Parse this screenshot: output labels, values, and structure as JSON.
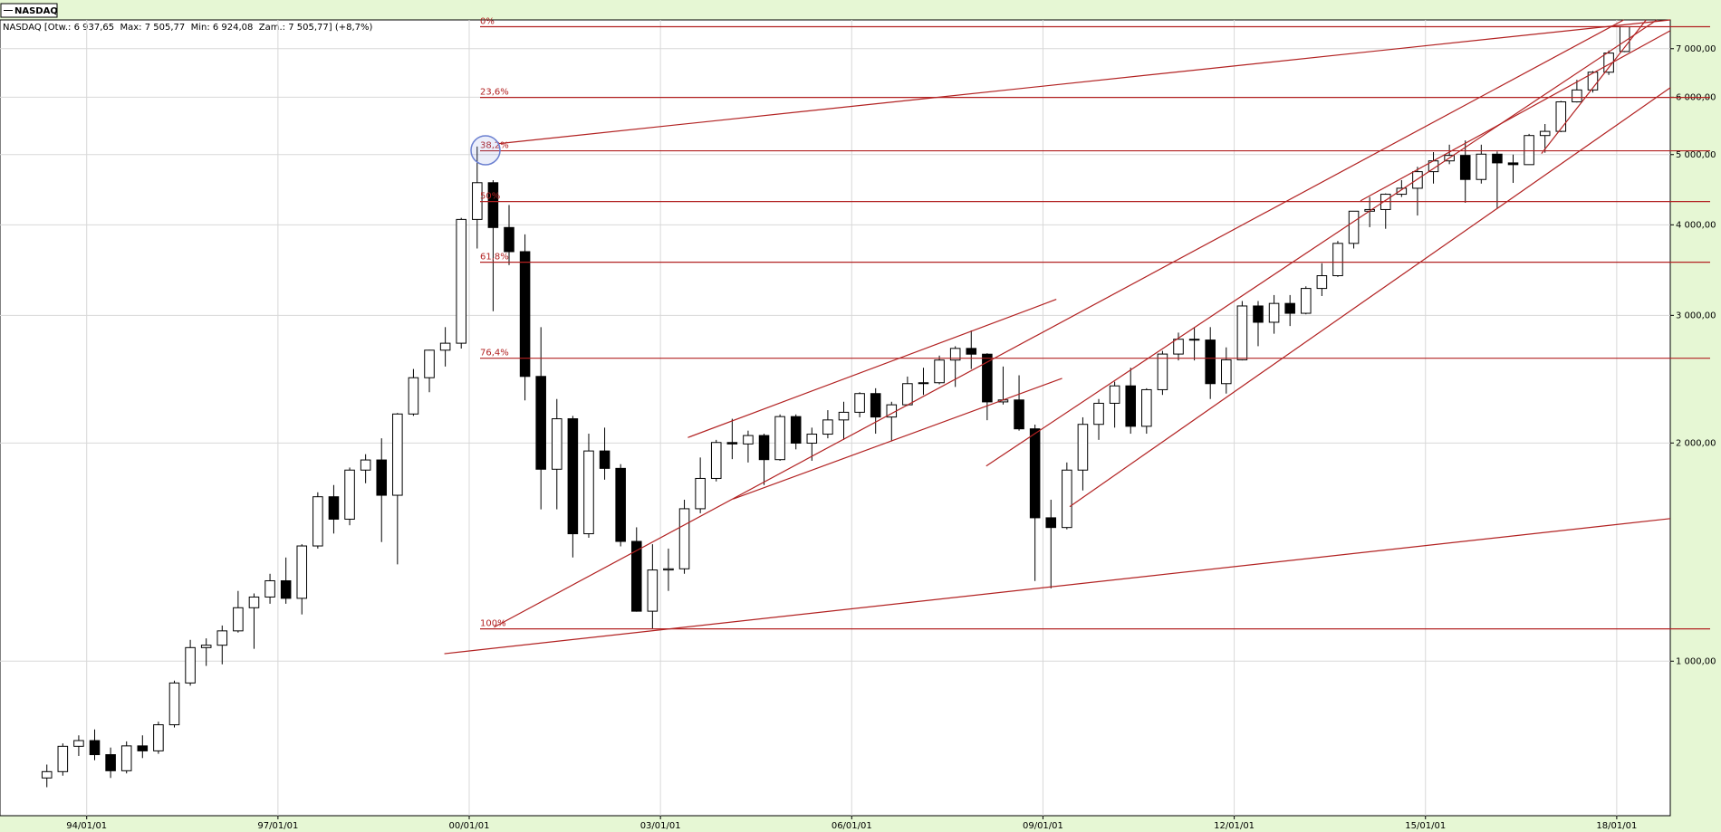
{
  "chart_data": {
    "type": "candlestick",
    "legend": "NASDAQ",
    "header": "NASDAQ [Otw.: 6 937,65  Max: 7 505,77  Min: 6 924,08  Zam.: 7 505,77] (+8,7%)",
    "log_y": true,
    "grid": true,
    "up_color": "#ffffff",
    "down_color": "#000000",
    "line_color": "#b22222",
    "xlim": [
      1992.64,
      2018.84
    ],
    "xticks": [
      {
        "value": 1994,
        "label": "94/01/01"
      },
      {
        "value": 1997,
        "label": "97/01/01"
      },
      {
        "value": 2000,
        "label": "00/01/01"
      },
      {
        "value": 2003,
        "label": "03/01/01"
      },
      {
        "value": 2006,
        "label": "06/01/01"
      },
      {
        "value": 2009,
        "label": "09/01/01"
      },
      {
        "value": 2012,
        "label": "12/01/01"
      },
      {
        "value": 2015,
        "label": "15/01/01"
      },
      {
        "value": 2018,
        "label": "18/01/01"
      }
    ],
    "ylim": [
      612,
      7670
    ],
    "yticks": [
      {
        "value": 1000,
        "label": "1 000,00"
      },
      {
        "value": 2000,
        "label": "2 000,00"
      },
      {
        "value": 3000,
        "label": "3 000,00"
      },
      {
        "value": 4000,
        "label": "4 000,00"
      },
      {
        "value": 5000,
        "label": "5 000,00"
      },
      {
        "value": 6000,
        "label": "6 000,00"
      },
      {
        "value": 7000,
        "label": "7 000,00"
      }
    ],
    "fib_levels": {
      "labels": [
        "0%",
        "23,6%",
        "38,2%",
        "50%",
        "61,8%",
        "76,4%",
        "100%"
      ],
      "values": [
        7505.77,
        5995,
        5061,
        4307,
        3552,
        2618,
        1108
      ]
    },
    "trendlines": [
      {
        "x": [
          2000.45,
          2018.84
        ],
        "y": [
          5176,
          7670
        ]
      },
      {
        "x": [
          1999.61,
          2018.84
        ],
        "y": [
          1024,
          1573
        ]
      },
      {
        "x": [
          2000.39,
          2018.11
        ],
        "y": [
          1114,
          7670
        ]
      },
      {
        "x": [
          2003.43,
          2009.21
        ],
        "y": [
          2035,
          3157
        ]
      },
      {
        "x": [
          2004.14,
          2009.3
        ],
        "y": [
          1674,
          2456
        ]
      },
      {
        "x": [
          2008.11,
          2018.63
        ],
        "y": [
          1859,
          7670
        ]
      },
      {
        "x": [
          2009.42,
          2018.84
        ],
        "y": [
          1634,
          6183
        ]
      },
      {
        "x": [
          2016.82,
          2018.46
        ],
        "y": [
          5017,
          7670
        ]
      },
      {
        "x": [
          2013.98,
          2018.84
        ],
        "y": [
          4316,
          7413
        ]
      }
    ],
    "x": [
      1993.375,
      1993.625,
      1993.875,
      1994.125,
      1994.375,
      1994.625,
      1994.875,
      1995.125,
      1995.375,
      1995.625,
      1995.875,
      1996.125,
      1996.375,
      1996.625,
      1996.875,
      1997.125,
      1997.375,
      1997.625,
      1997.875,
      1998.125,
      1998.375,
      1998.625,
      1998.875,
      1999.125,
      1999.375,
      1999.625,
      1999.875,
      2000.125,
      2000.375,
      2000.625,
      2000.875,
      2001.125,
      2001.375,
      2001.625,
      2001.875,
      2002.125,
      2002.375,
      2002.625,
      2002.875,
      2003.125,
      2003.375,
      2003.625,
      2003.875,
      2004.125,
      2004.375,
      2004.625,
      2004.875,
      2005.125,
      2005.375,
      2005.625,
      2005.875,
      2006.125,
      2006.375,
      2006.625,
      2006.875,
      2007.125,
      2007.375,
      2007.625,
      2007.875,
      2008.125,
      2008.375,
      2008.625,
      2008.875,
      2009.125,
      2009.375,
      2009.625,
      2009.875,
      2010.125,
      2010.375,
      2010.625,
      2010.875,
      2011.125,
      2011.375,
      2011.625,
      2011.875,
      2012.125,
      2012.375,
      2012.625,
      2012.875,
      2013.125,
      2013.375,
      2013.625,
      2013.875,
      2014.125,
      2014.375,
      2014.625,
      2014.875,
      2015.125,
      2015.375,
      2015.625,
      2015.875,
      2016.125,
      2016.375,
      2016.625,
      2016.875,
      2017.125,
      2017.375,
      2017.625,
      2017.875,
      2018.125
    ],
    "candles": [
      [
        690,
        720,
        670,
        704
      ],
      [
        704,
        770,
        695,
        763
      ],
      [
        763,
        790,
        740,
        777
      ],
      [
        777,
        805,
        730,
        743
      ],
      [
        743,
        760,
        690,
        706
      ],
      [
        706,
        775,
        700,
        764
      ],
      [
        764,
        790,
        735,
        752
      ],
      [
        752,
        825,
        745,
        817
      ],
      [
        817,
        940,
        810,
        933
      ],
      [
        933,
        1070,
        925,
        1044
      ],
      [
        1044,
        1075,
        985,
        1052
      ],
      [
        1052,
        1120,
        990,
        1101
      ],
      [
        1101,
        1250,
        1095,
        1185
      ],
      [
        1185,
        1240,
        1040,
        1226
      ],
      [
        1226,
        1320,
        1200,
        1291
      ],
      [
        1291,
        1390,
        1200,
        1221
      ],
      [
        1221,
        1450,
        1160,
        1442
      ],
      [
        1442,
        1710,
        1430,
        1686
      ],
      [
        1686,
        1750,
        1500,
        1570
      ],
      [
        1570,
        1850,
        1540,
        1835
      ],
      [
        1835,
        1930,
        1760,
        1895
      ],
      [
        1895,
        2030,
        1460,
        1694
      ],
      [
        1694,
        2200,
        1360,
        2193
      ],
      [
        2193,
        2530,
        2180,
        2461
      ],
      [
        2461,
        2690,
        2350,
        2686
      ],
      [
        2686,
        2890,
        2550,
        2746
      ],
      [
        2746,
        4090,
        2700,
        4069
      ],
      [
        4069,
        5130,
        3710,
        4573
      ],
      [
        4573,
        4610,
        3040,
        3966
      ],
      [
        3966,
        4260,
        3520,
        3673
      ],
      [
        3673,
        3880,
        2290,
        2471
      ],
      [
        2471,
        2890,
        1620,
        1840
      ],
      [
        1840,
        2300,
        1620,
        2160
      ],
      [
        2160,
        2180,
        1390,
        1499
      ],
      [
        1499,
        2060,
        1480,
        1950
      ],
      [
        1950,
        2100,
        1780,
        1845
      ],
      [
        1845,
        1870,
        1440,
        1463
      ],
      [
        1463,
        1530,
        1170,
        1172
      ],
      [
        1172,
        1450,
        1110,
        1336
      ],
      [
        1336,
        1430,
        1250,
        1341
      ],
      [
        1341,
        1670,
        1320,
        1623
      ],
      [
        1623,
        1910,
        1600,
        1787
      ],
      [
        1787,
        2020,
        1770,
        2003
      ],
      [
        2003,
        2160,
        1900,
        1994
      ],
      [
        1994,
        2080,
        1880,
        2048
      ],
      [
        2048,
        2060,
        1750,
        1897
      ],
      [
        1897,
        2190,
        1890,
        2175
      ],
      [
        2175,
        2190,
        1960,
        1999
      ],
      [
        1999,
        2100,
        1890,
        2057
      ],
      [
        2057,
        2220,
        2030,
        2152
      ],
      [
        2152,
        2280,
        2020,
        2205
      ],
      [
        2205,
        2350,
        2170,
        2340
      ],
      [
        2340,
        2380,
        2060,
        2172
      ],
      [
        2172,
        2280,
        2010,
        2258
      ],
      [
        2258,
        2470,
        2250,
        2415
      ],
      [
        2415,
        2540,
        2330,
        2422
      ],
      [
        2422,
        2640,
        2410,
        2603
      ],
      [
        2603,
        2720,
        2390,
        2701
      ],
      [
        2701,
        2860,
        2530,
        2652
      ],
      [
        2652,
        2660,
        2150,
        2279
      ],
      [
        2279,
        2550,
        2260,
        2293
      ],
      [
        2293,
        2480,
        2080,
        2092
      ],
      [
        2092,
        2120,
        1290,
        1577
      ],
      [
        1577,
        1670,
        1260,
        1529
      ],
      [
        1529,
        1880,
        1520,
        1835
      ],
      [
        1835,
        2170,
        1720,
        2122
      ],
      [
        2122,
        2300,
        2020,
        2269
      ],
      [
        2269,
        2430,
        2100,
        2398
      ],
      [
        2398,
        2540,
        2060,
        2109
      ],
      [
        2109,
        2380,
        2060,
        2369
      ],
      [
        2369,
        2680,
        2330,
        2653
      ],
      [
        2653,
        2840,
        2600,
        2781
      ],
      [
        2781,
        2890,
        2600,
        2774
      ],
      [
        2774,
        2890,
        2300,
        2415
      ],
      [
        2415,
        2710,
        2340,
        2605
      ],
      [
        2605,
        3140,
        2600,
        3091
      ],
      [
        3091,
        3140,
        2720,
        2935
      ],
      [
        2935,
        3200,
        2830,
        3116
      ],
      [
        3116,
        3200,
        2900,
        3020
      ],
      [
        3020,
        3290,
        3010,
        3268
      ],
      [
        3268,
        3540,
        3190,
        3403
      ],
      [
        3403,
        3800,
        3390,
        3771
      ],
      [
        3771,
        4180,
        3710,
        4177
      ],
      [
        4177,
        4370,
        3970,
        4199
      ],
      [
        4199,
        4420,
        3950,
        4408
      ],
      [
        4408,
        4610,
        4370,
        4493
      ],
      [
        4493,
        4810,
        4120,
        4736
      ],
      [
        4736,
        5040,
        4560,
        4901
      ],
      [
        4901,
        5160,
        4850,
        4987
      ],
      [
        4987,
        5230,
        4290,
        4620
      ],
      [
        4620,
        5160,
        4560,
        5007
      ],
      [
        5007,
        5050,
        4210,
        4870
      ],
      [
        4870,
        5000,
        4570,
        4843
      ],
      [
        4843,
        5340,
        4840,
        5312
      ],
      [
        5312,
        5510,
        5030,
        5383
      ],
      [
        5383,
        5930,
        5370,
        5912
      ],
      [
        5912,
        6340,
        5900,
        6140
      ],
      [
        6140,
        6520,
        6090,
        6496
      ],
      [
        6496,
        6960,
        6440,
        6903
      ],
      [
        6937.65,
        7505.77,
        6924.08,
        7505.77
      ]
    ]
  }
}
